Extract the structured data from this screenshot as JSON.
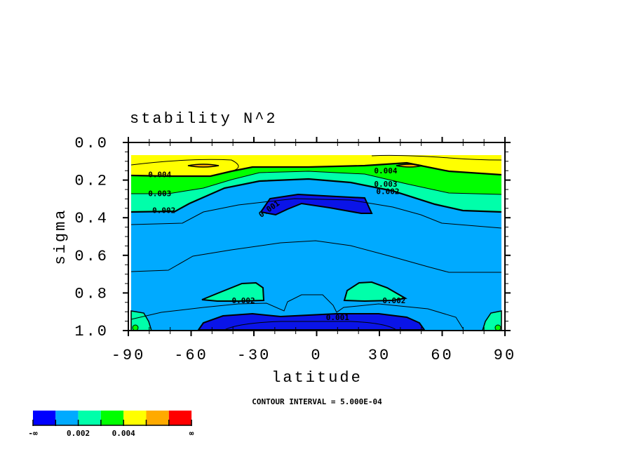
{
  "chart_data": {
    "type": "heatmap",
    "subtype": "filled-contour",
    "title": "stability N^2",
    "xlabel": "latitude",
    "ylabel": "sigma",
    "xlim": [
      -90,
      90
    ],
    "ylim": [
      1.0,
      0.0
    ],
    "x_ticks": [
      "-90",
      "-60",
      "-30",
      "0",
      "30",
      "60",
      "90"
    ],
    "y_ticks": [
      "0.0",
      "0.2",
      "0.4",
      "0.6",
      "0.8",
      "1.0"
    ],
    "contour_interval_text": "CONTOUR INTERVAL = 5.000E-04",
    "contour_labels": [
      {
        "text": "0.004",
        "lat": -75,
        "sigma": 0.17
      },
      {
        "text": "0.003",
        "lat": -75,
        "sigma": 0.27
      },
      {
        "text": "0.002",
        "lat": -73,
        "sigma": 0.36
      },
      {
        "text": "0.001",
        "lat": -22,
        "sigma": 0.35
      },
      {
        "text": "0.004",
        "lat": 33,
        "sigma": 0.15
      },
      {
        "text": "0.003",
        "lat": 33,
        "sigma": 0.22
      },
      {
        "text": "0.002",
        "lat": 34,
        "sigma": 0.26
      },
      {
        "text": "0.002",
        "lat": -35,
        "sigma": 0.84
      },
      {
        "text": "0.002",
        "lat": 37,
        "sigma": 0.84
      },
      {
        "text": "0.001",
        "lat": 10,
        "sigma": 0.93
      }
    ],
    "colorbar": {
      "colors": [
        "#0000ff",
        "#00aaff",
        "#00ffaa",
        "#00ff00",
        "#ffff00",
        "#ffaa00",
        "#ff0000"
      ],
      "tick_labels": [
        "-∞",
        "0.002",
        "0.004",
        "∞"
      ]
    }
  }
}
